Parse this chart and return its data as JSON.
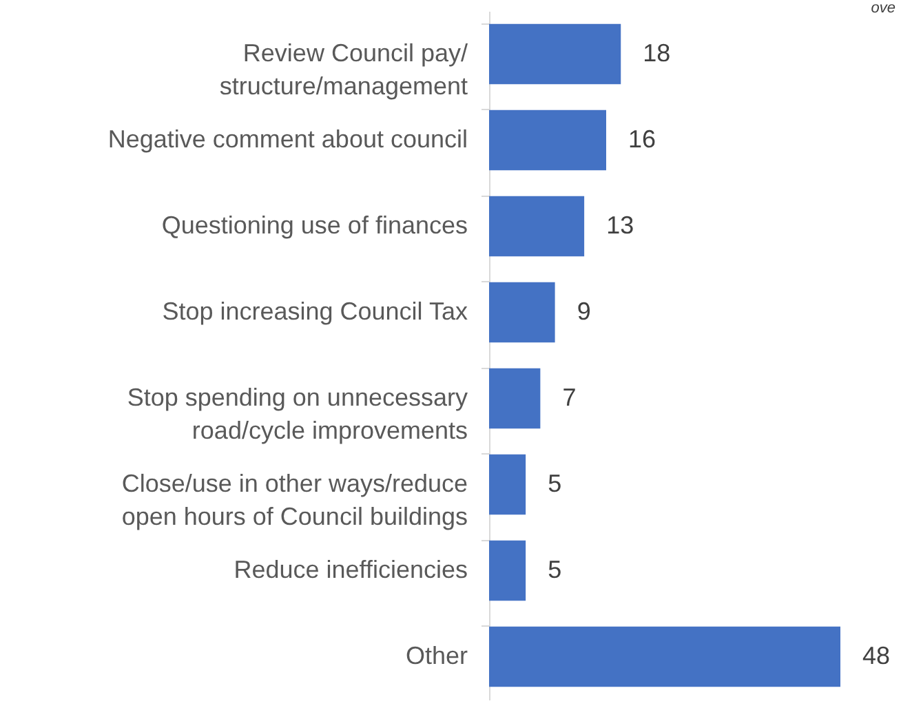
{
  "chart_data": {
    "type": "bar",
    "orientation": "horizontal",
    "categories": [
      "Review Council pay/ structure/management",
      "Negative comment about council",
      "Questioning use of finances",
      "Stop increasing Council Tax",
      "Stop spending on unnecessary road/cycle improvements",
      "Close/use in other ways/reduce open hours of Council buildings",
      "Reduce inefficiencies",
      "Other"
    ],
    "values": [
      18,
      16,
      13,
      9,
      7,
      5,
      5,
      48
    ],
    "color": "#4472c4",
    "data_labels": true,
    "tick_labels": "y",
    "annotations": [
      "ove"
    ]
  }
}
